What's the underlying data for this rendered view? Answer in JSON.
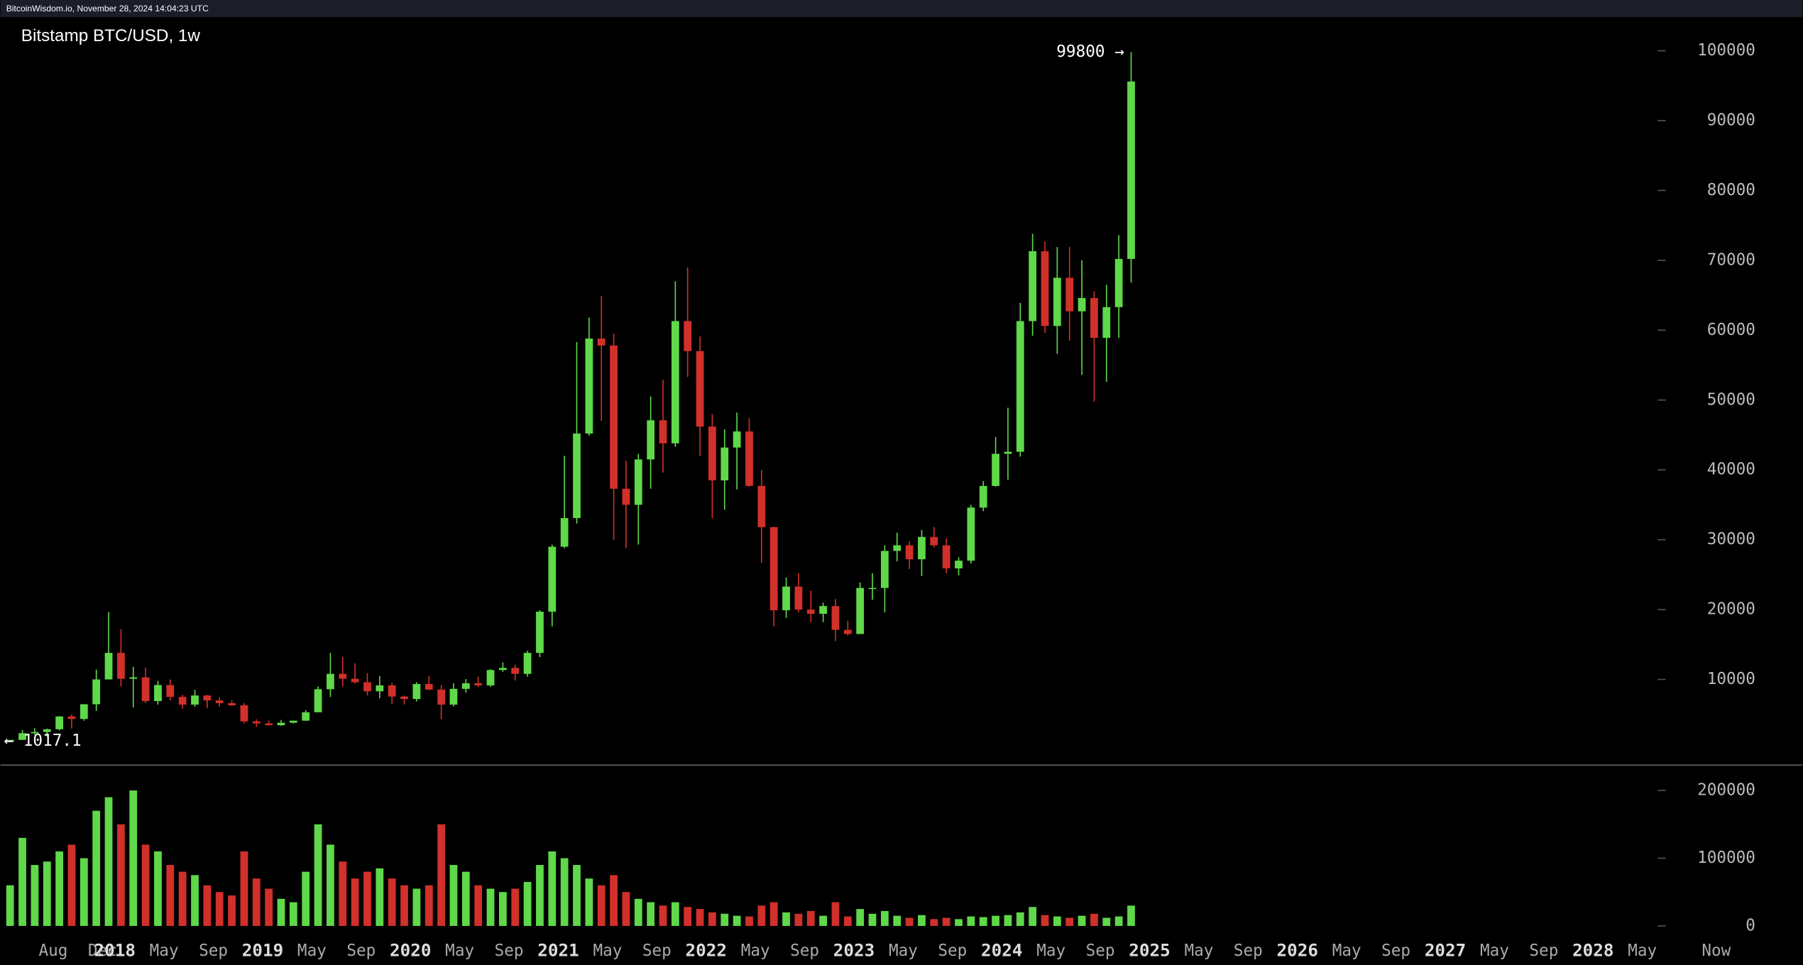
{
  "header": {
    "text": "BitcoinWisdom.io, November 28, 2024 14:04:23 UTC"
  },
  "chart_data": [
    {
      "type": "candlestick",
      "title": "Bitstamp BTC/USD, 1w",
      "up_color": "#5fd84a",
      "down_color": "#d1302b",
      "x": [
        "2017-04",
        "2017-05",
        "2017-06",
        "2017-07",
        "2017-08",
        "2017-09",
        "2017-10",
        "2017-11",
        "2017-12",
        "2018-01",
        "2018-02",
        "2018-03",
        "2018-04",
        "2018-05",
        "2018-06",
        "2018-07",
        "2018-08",
        "2018-09",
        "2018-10",
        "2018-11",
        "2018-12",
        "2019-01",
        "2019-02",
        "2019-03",
        "2019-04",
        "2019-05",
        "2019-06",
        "2019-07",
        "2019-08",
        "2019-09",
        "2019-10",
        "2019-11",
        "2019-12",
        "2020-01",
        "2020-02",
        "2020-03",
        "2020-04",
        "2020-05",
        "2020-06",
        "2020-07",
        "2020-08",
        "2020-09",
        "2020-10",
        "2020-11",
        "2020-12",
        "2021-01",
        "2021-02",
        "2021-03",
        "2021-04",
        "2021-05",
        "2021-06",
        "2021-07",
        "2021-08",
        "2021-09",
        "2021-10",
        "2021-11",
        "2021-12",
        "2022-01",
        "2022-02",
        "2022-03",
        "2022-04",
        "2022-05",
        "2022-06",
        "2022-07",
        "2022-08",
        "2022-09",
        "2022-10",
        "2022-11",
        "2022-12",
        "2023-01",
        "2023-02",
        "2023-03",
        "2023-04",
        "2023-05",
        "2023-06",
        "2023-07",
        "2023-08",
        "2023-09",
        "2023-10",
        "2023-11",
        "2023-12",
        "2024-01",
        "2024-02",
        "2024-03",
        "2024-04",
        "2024-05",
        "2024-06",
        "2024-07",
        "2024-08",
        "2024-09",
        "2024-10",
        "2024-11"
      ],
      "open": [
        1080,
        1350,
        2300,
        2480,
        2870,
        4700,
        4340,
        6450,
        10000,
        13800,
        10100,
        10300,
        6900,
        9200,
        7500,
        6400,
        7700,
        7000,
        6600,
        6300,
        4000,
        3700,
        3450,
        3800,
        4100,
        5300,
        8600,
        10800,
        10100,
        9600,
        8300,
        9150,
        7550,
        7200,
        9350,
        8550,
        6400,
        8650,
        9450,
        9150,
        11350,
        11650,
        10800,
        13800,
        19700,
        29000,
        33100,
        45200,
        58800,
        57800,
        37300,
        35000,
        41500,
        47100,
        43800,
        61300,
        57000,
        46200,
        38500,
        43200,
        45500,
        37700,
        31800,
        19900,
        23300,
        20000,
        19400,
        20500,
        17100,
        16500,
        23100,
        23100,
        28400,
        29200,
        27200,
        30400,
        29200,
        25900,
        27000,
        34600,
        37700,
        42300,
        42600,
        61300,
        71300,
        60600,
        67500,
        62700,
        64600,
        58900,
        63300,
        70200
      ],
      "high": [
        1350,
        2760,
        3000,
        2950,
        4750,
        5000,
        6470,
        11400,
        19666,
        17200,
        11800,
        11700,
        9800,
        10000,
        7800,
        8500,
        7800,
        7400,
        7000,
        6600,
        4300,
        4100,
        4200,
        4100,
        5600,
        9000,
        13800,
        13200,
        12300,
        10900,
        10500,
        9500,
        7700,
        9600,
        10500,
        9200,
        9450,
        10050,
        10400,
        11450,
        12450,
        12100,
        14100,
        19900,
        29300,
        42000,
        58300,
        61800,
        64900,
        59500,
        41300,
        42300,
        50500,
        52900,
        67000,
        69000,
        59100,
        48000,
        45800,
        48200,
        47400,
        40000,
        31900,
        24600,
        25200,
        22700,
        21000,
        21500,
        18400,
        23900,
        25200,
        29200,
        31000,
        29800,
        31400,
        31800,
        30200,
        27500,
        35000,
        38400,
        44700,
        48900,
        63900,
        73800,
        72700,
        71900,
        71900,
        70000,
        65600,
        66500,
        73600,
        99800
      ],
      "low": [
        1017.1,
        1350,
        2100,
        1830,
        2700,
        2980,
        4100,
        5500,
        10000,
        9000,
        6000,
        6600,
        6400,
        7000,
        5800,
        6100,
        5900,
        6100,
        6200,
        3700,
        3200,
        3400,
        3350,
        3700,
        4050,
        5300,
        7500,
        9000,
        9400,
        7700,
        7300,
        6500,
        6430,
        6850,
        8450,
        4300,
        6150,
        8100,
        8900,
        8950,
        11100,
        9850,
        10400,
        13200,
        17600,
        28800,
        32300,
        44900,
        47000,
        30000,
        28800,
        29300,
        37300,
        39600,
        43300,
        53300,
        42000,
        33100,
        34300,
        37200,
        37600,
        26700,
        17600,
        18800,
        19600,
        18200,
        18200,
        15500,
        16300,
        16500,
        21400,
        19600,
        26900,
        25800,
        24800,
        28900,
        25200,
        24900,
        26600,
        34100,
        37600,
        38600,
        41900,
        59200,
        59600,
        56600,
        58500,
        53600,
        49800,
        52600,
        58900,
        66800
      ],
      "close": [
        1350,
        2300,
        2480,
        2870,
        4700,
        4340,
        6450,
        10000,
        13800,
        10100,
        10300,
        6900,
        9200,
        7500,
        6400,
        7700,
        7000,
        6600,
        6300,
        4000,
        3700,
        3450,
        3800,
        4100,
        5300,
        8600,
        10800,
        10100,
        9600,
        8300,
        9150,
        7550,
        7200,
        9350,
        8550,
        6400,
        8650,
        9450,
        9150,
        11350,
        11650,
        10800,
        13800,
        19700,
        29000,
        33100,
        45200,
        58800,
        57800,
        37300,
        35000,
        41500,
        47100,
        43800,
        61300,
        57000,
        46200,
        38500,
        43200,
        45500,
        37700,
        31800,
        19900,
        23300,
        20000,
        19400,
        20500,
        17100,
        16500,
        23100,
        23100,
        28400,
        29200,
        27200,
        30400,
        29200,
        25900,
        27000,
        34600,
        37700,
        42300,
        42600,
        61300,
        71300,
        60600,
        67500,
        62700,
        64600,
        58900,
        63300,
        70200,
        95600
      ],
      "xlim": [
        "2017-04",
        "2029-06"
      ],
      "ylim": [
        -2100,
        104800
      ],
      "yticks": [
        10000,
        20000,
        30000,
        40000,
        50000,
        60000,
        70000,
        80000,
        90000,
        100000
      ],
      "annotations": [
        "99800 →",
        "← 1017.1"
      ]
    },
    {
      "type": "bar",
      "values": [
        60000,
        130000,
        90000,
        95000,
        110000,
        120000,
        100000,
        170000,
        190000,
        150000,
        200000,
        120000,
        110000,
        90000,
        80000,
        75000,
        60000,
        50000,
        45000,
        110000,
        70000,
        55000,
        40000,
        35000,
        80000,
        150000,
        120000,
        95000,
        70000,
        80000,
        85000,
        70000,
        60000,
        55000,
        60000,
        150000,
        90000,
        80000,
        60000,
        55000,
        50000,
        55000,
        65000,
        90000,
        110000,
        100000,
        90000,
        70000,
        60000,
        75000,
        50000,
        40000,
        35000,
        30000,
        35000,
        28000,
        25000,
        20000,
        18000,
        15000,
        14000,
        30000,
        35000,
        20000,
        18000,
        22000,
        15000,
        35000,
        14000,
        25000,
        18000,
        22000,
        15000,
        12000,
        16000,
        10000,
        12000,
        10000,
        14000,
        13000,
        15000,
        16000,
        20000,
        28000,
        16000,
        14000,
        12000,
        15000,
        18000,
        12000,
        14000,
        30000
      ],
      "ylim": [
        -3400,
        234000
      ],
      "yticks": [
        0,
        100000,
        200000
      ],
      "xticks": [
        {
          "value": "2017-08",
          "label": "Aug"
        },
        {
          "value": "2017-12",
          "label": "Dec"
        },
        {
          "value": "2018-01",
          "label": "2018"
        },
        {
          "value": "2018-05",
          "label": "May"
        },
        {
          "value": "2018-09",
          "label": "Sep"
        },
        {
          "value": "2019-01",
          "label": "2019"
        },
        {
          "value": "2019-05",
          "label": "May"
        },
        {
          "value": "2019-09",
          "label": "Sep"
        },
        {
          "value": "2020-01",
          "label": "2020"
        },
        {
          "value": "2020-05",
          "label": "May"
        },
        {
          "value": "2020-09",
          "label": "Sep"
        },
        {
          "value": "2021-01",
          "label": "2021"
        },
        {
          "value": "2021-05",
          "label": "May"
        },
        {
          "value": "2021-09",
          "label": "Sep"
        },
        {
          "value": "2022-01",
          "label": "2022"
        },
        {
          "value": "2022-05",
          "label": "May"
        },
        {
          "value": "2022-09",
          "label": "Sep"
        },
        {
          "value": "2023-01",
          "label": "2023"
        },
        {
          "value": "2023-05",
          "label": "May"
        },
        {
          "value": "2023-09",
          "label": "Sep"
        },
        {
          "value": "2024-01",
          "label": "2024"
        },
        {
          "value": "2024-05",
          "label": "May"
        },
        {
          "value": "2024-09",
          "label": "Sep"
        },
        {
          "value": "2025-01",
          "label": "2025"
        },
        {
          "value": "2025-05",
          "label": "May"
        },
        {
          "value": "2025-09",
          "label": "Sep"
        },
        {
          "value": "2026-01",
          "label": "2026"
        },
        {
          "value": "2026-05",
          "label": "May"
        },
        {
          "value": "2026-09",
          "label": "Sep"
        },
        {
          "value": "2027-01",
          "label": "2027"
        },
        {
          "value": "2027-05",
          "label": "May"
        },
        {
          "value": "2027-09",
          "label": "Sep"
        },
        {
          "value": "2028-01",
          "label": "2028"
        },
        {
          "value": "2028-05",
          "label": "May"
        },
        {
          "value": "2028-11",
          "label": "Now"
        }
      ]
    }
  ]
}
